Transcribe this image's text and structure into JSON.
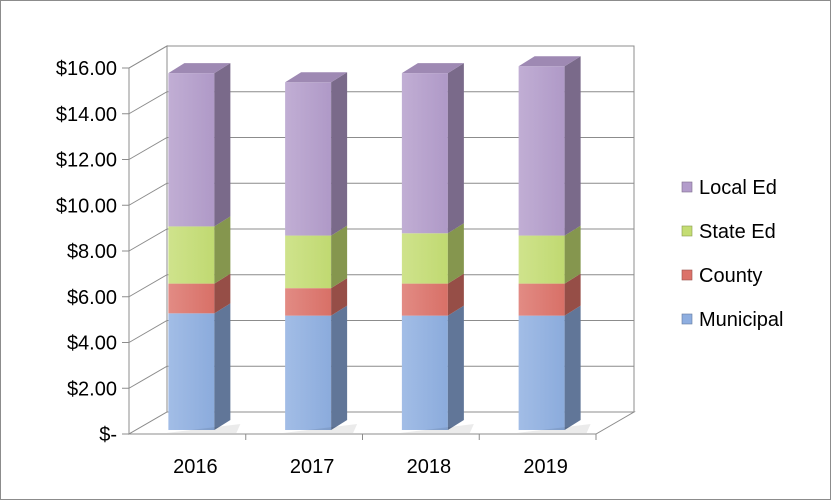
{
  "chart_data": {
    "type": "bar",
    "stacked": true,
    "three_d": true,
    "categories": [
      "2016",
      "2017",
      "2018",
      "2019"
    ],
    "series": [
      {
        "name": "Municipal",
        "values": [
          5.1,
          5.0,
          5.0,
          5.0
        ],
        "color": "#8eaee0"
      },
      {
        "name": "County",
        "values": [
          1.3,
          1.2,
          1.4,
          1.4
        ],
        "color": "#dc7269"
      },
      {
        "name": "State Ed",
        "values": [
          2.5,
          2.3,
          2.2,
          2.1
        ],
        "color": "#c4dd73"
      },
      {
        "name": "Local Ed",
        "values": [
          6.7,
          6.7,
          7.0,
          7.4
        ],
        "color": "#b39ccb"
      }
    ],
    "yticks": [
      "$-",
      "$2.00",
      "$4.00",
      "$6.00",
      "$8.00",
      "$10.00",
      "$12.00",
      "$14.00",
      "$16.00"
    ],
    "ylim": [
      0,
      16
    ],
    "grid": true,
    "legend_position": "right",
    "legend_order": [
      "Local Ed",
      "State Ed",
      "County",
      "Municipal"
    ]
  }
}
